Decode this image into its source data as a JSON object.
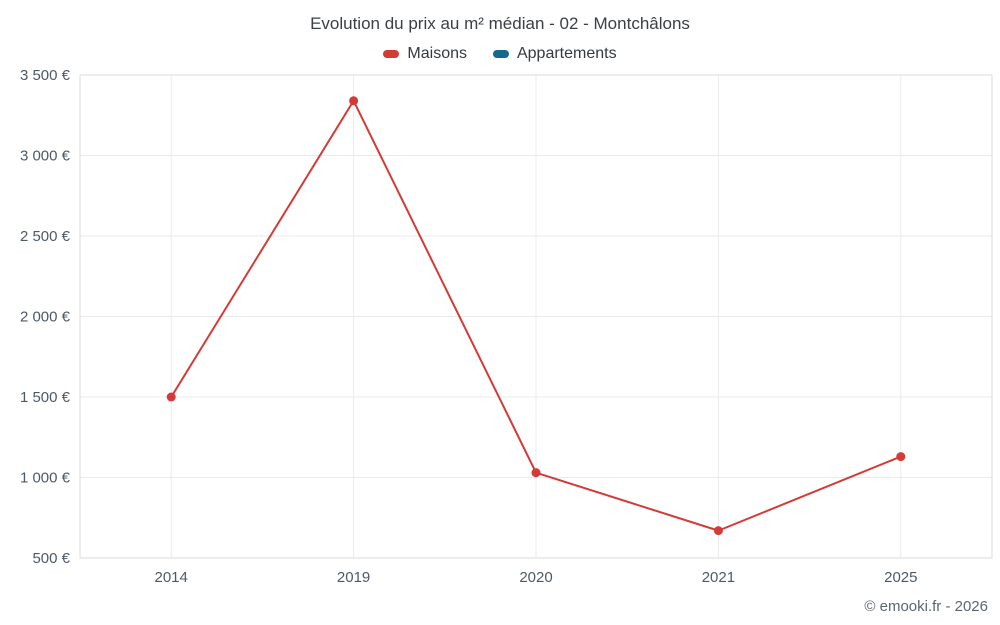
{
  "chart_data": {
    "type": "line",
    "title": "Evolution du prix au m² médian - 02 - Montchâlons",
    "categories": [
      "2014",
      "2019",
      "2020",
      "2021",
      "2025"
    ],
    "series": [
      {
        "name": "Maisons",
        "color": "#d43a36",
        "values": [
          1500,
          3340,
          1030,
          670,
          1130
        ]
      },
      {
        "name": "Appartements",
        "color": "#14688a",
        "values": []
      }
    ],
    "ylim": [
      500,
      3500
    ],
    "ytick_step": 500,
    "ytick_labels": [
      "500 €",
      "1 000 €",
      "1 500 €",
      "2 000 €",
      "2 500 €",
      "3 000 €",
      "3 500 €"
    ],
    "grid": true,
    "legend_position": "top",
    "xlabel": "",
    "ylabel": ""
  },
  "footer": {
    "credit": "© emooki.fr - 2026"
  }
}
